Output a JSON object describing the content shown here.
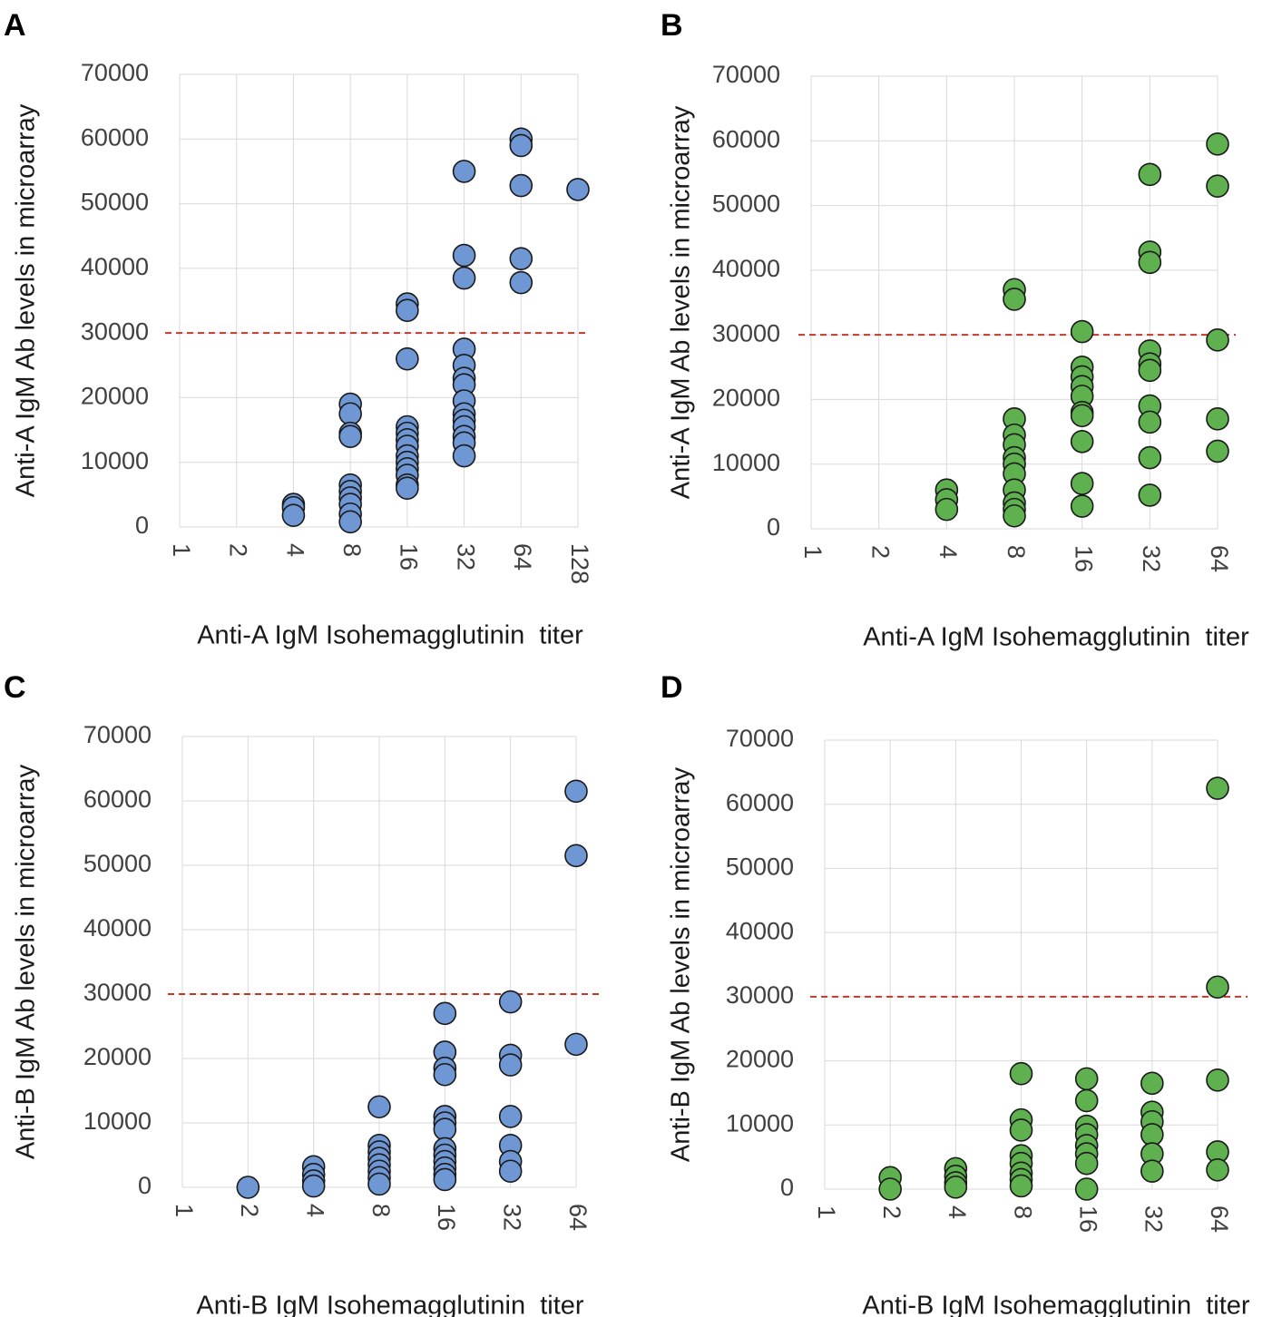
{
  "chart_data": [
    {
      "panel": "A",
      "type": "scatter",
      "xlabel": "Anti-A IgM Isohemagglutinin  titer",
      "ylabel": "Anti-A IgM Ab levels in microarray",
      "x_categories": [
        "1",
        "2",
        "4",
        "8",
        "16",
        "32",
        "64",
        "128"
      ],
      "yticks": [
        "0",
        "10000",
        "20000",
        "30000",
        "40000",
        "50000",
        "60000",
        "70000"
      ],
      "ylim": [
        0,
        70000
      ],
      "threshold": 30000,
      "color": "#6f97d4",
      "points": [
        [
          "4",
          3500
        ],
        [
          "4",
          3000
        ],
        [
          "4",
          1800
        ],
        [
          "8",
          19000
        ],
        [
          "8",
          17500
        ],
        [
          "8",
          14500
        ],
        [
          "8",
          14000
        ],
        [
          "8",
          6500
        ],
        [
          "8",
          5500
        ],
        [
          "8",
          4500
        ],
        [
          "8",
          3500
        ],
        [
          "8",
          2000
        ],
        [
          "8",
          800
        ],
        [
          "16",
          34500
        ],
        [
          "16",
          33500
        ],
        [
          "16",
          26000
        ],
        [
          "16",
          15500
        ],
        [
          "16",
          14500
        ],
        [
          "16",
          13500
        ],
        [
          "16",
          12500
        ],
        [
          "16",
          11000
        ],
        [
          "16",
          10000
        ],
        [
          "16",
          9000
        ],
        [
          "16",
          8000
        ],
        [
          "16",
          6500
        ],
        [
          "16",
          6000
        ],
        [
          "32",
          55000
        ],
        [
          "32",
          42000
        ],
        [
          "32",
          38500
        ],
        [
          "32",
          27500
        ],
        [
          "32",
          25000
        ],
        [
          "32",
          23000
        ],
        [
          "32",
          22000
        ],
        [
          "32",
          19500
        ],
        [
          "32",
          17500
        ],
        [
          "32",
          16500
        ],
        [
          "32",
          15500
        ],
        [
          "32",
          14000
        ],
        [
          "32",
          13000
        ],
        [
          "32",
          11000
        ],
        [
          "64",
          60000
        ],
        [
          "64",
          59000
        ],
        [
          "64",
          52800
        ],
        [
          "64",
          41500
        ],
        [
          "64",
          37800
        ],
        [
          "128",
          52200
        ]
      ]
    },
    {
      "panel": "B",
      "type": "scatter",
      "xlabel": "Anti-A IgM Isohemagglutinin  titer",
      "ylabel": "Anti-A IgM Ab levels in microarray",
      "x_categories": [
        "1",
        "2",
        "4",
        "8",
        "16",
        "32",
        "64"
      ],
      "yticks": [
        "0",
        "10000",
        "20000",
        "30000",
        "40000",
        "50000",
        "60000",
        "70000"
      ],
      "ylim": [
        0,
        70000
      ],
      "threshold": 30000,
      "color": "#5fb14f",
      "points": [
        [
          "4",
          6000
        ],
        [
          "4",
          4500
        ],
        [
          "4",
          3000
        ],
        [
          "8",
          37000
        ],
        [
          "8",
          35500
        ],
        [
          "8",
          17000
        ],
        [
          "8",
          14500
        ],
        [
          "8",
          13000
        ],
        [
          "8",
          11000
        ],
        [
          "8",
          10000
        ],
        [
          "8",
          8500
        ],
        [
          "8",
          6000
        ],
        [
          "8",
          4000
        ],
        [
          "8",
          3000
        ],
        [
          "8",
          2000
        ],
        [
          "16",
          30500
        ],
        [
          "16",
          25000
        ],
        [
          "16",
          23500
        ],
        [
          "16",
          22000
        ],
        [
          "16",
          20500
        ],
        [
          "16",
          18000
        ],
        [
          "16",
          17500
        ],
        [
          "16",
          13500
        ],
        [
          "16",
          7000
        ],
        [
          "16",
          3500
        ],
        [
          "32",
          54800
        ],
        [
          "32",
          42800
        ],
        [
          "32",
          41200
        ],
        [
          "32",
          27500
        ],
        [
          "32",
          25500
        ],
        [
          "32",
          24500
        ],
        [
          "32",
          19000
        ],
        [
          "32",
          16500
        ],
        [
          "32",
          11000
        ],
        [
          "32",
          5200
        ],
        [
          "64",
          59500
        ],
        [
          "64",
          53000
        ],
        [
          "64",
          29200
        ],
        [
          "64",
          17000
        ],
        [
          "64",
          12000
        ]
      ]
    },
    {
      "panel": "C",
      "type": "scatter",
      "xlabel": "Anti-B IgM Isohemagglutinin  titer",
      "ylabel": "Anti-B IgM Ab levels in microarray",
      "x_categories": [
        "1",
        "2",
        "4",
        "8",
        "16",
        "32",
        "64"
      ],
      "yticks": [
        "0",
        "10000",
        "20000",
        "30000",
        "40000",
        "50000",
        "60000",
        "70000"
      ],
      "ylim": [
        0,
        70000
      ],
      "threshold": 30000,
      "color": "#6f97d4",
      "points": [
        [
          "2",
          0
        ],
        [
          "4",
          3200
        ],
        [
          "4",
          2000
        ],
        [
          "4",
          1000
        ],
        [
          "4",
          200
        ],
        [
          "8",
          12500
        ],
        [
          "8",
          6500
        ],
        [
          "8",
          5500
        ],
        [
          "8",
          4500
        ],
        [
          "8",
          3500
        ],
        [
          "8",
          2500
        ],
        [
          "8",
          1500
        ],
        [
          "8",
          500
        ],
        [
          "16",
          27000
        ],
        [
          "16",
          21000
        ],
        [
          "16",
          18500
        ],
        [
          "16",
          17500
        ],
        [
          "16",
          11000
        ],
        [
          "16",
          10000
        ],
        [
          "16",
          9000
        ],
        [
          "16",
          6000
        ],
        [
          "16",
          5000
        ],
        [
          "16",
          4000
        ],
        [
          "16",
          3000
        ],
        [
          "16",
          2000
        ],
        [
          "16",
          1200
        ],
        [
          "32",
          28800
        ],
        [
          "32",
          20500
        ],
        [
          "32",
          19000
        ],
        [
          "32",
          11000
        ],
        [
          "32",
          6500
        ],
        [
          "32",
          4000
        ],
        [
          "32",
          2500
        ],
        [
          "64",
          61500
        ],
        [
          "64",
          51500
        ],
        [
          "64",
          22200
        ]
      ]
    },
    {
      "panel": "D",
      "type": "scatter",
      "xlabel": "Anti-B IgM Isohemagglutinin  titer",
      "ylabel": "Anti-B IgM Ab levels in microarray",
      "x_categories": [
        "1",
        "2",
        "4",
        "8",
        "16",
        "32",
        "64"
      ],
      "yticks": [
        "0",
        "10000",
        "20000",
        "30000",
        "40000",
        "50000",
        "60000",
        "70000"
      ],
      "ylim": [
        0,
        70000
      ],
      "threshold": 30000,
      "color": "#5fb14f",
      "points": [
        [
          "2",
          1800
        ],
        [
          "2",
          0
        ],
        [
          "4",
          3200
        ],
        [
          "4",
          2000
        ],
        [
          "4",
          1000
        ],
        [
          "4",
          300
        ],
        [
          "8",
          18000
        ],
        [
          "8",
          10800
        ],
        [
          "8",
          9200
        ],
        [
          "8",
          5200
        ],
        [
          "8",
          4000
        ],
        [
          "8",
          2500
        ],
        [
          "8",
          1500
        ],
        [
          "8",
          500
        ],
        [
          "16",
          17200
        ],
        [
          "16",
          13800
        ],
        [
          "16",
          9800
        ],
        [
          "16",
          8500
        ],
        [
          "16",
          6800
        ],
        [
          "16",
          5500
        ],
        [
          "16",
          4000
        ],
        [
          "16",
          0
        ],
        [
          "32",
          16500
        ],
        [
          "32",
          12000
        ],
        [
          "32",
          10500
        ],
        [
          "32",
          8500
        ],
        [
          "32",
          5500
        ],
        [
          "32",
          2800
        ],
        [
          "64",
          62500
        ],
        [
          "64",
          31500
        ],
        [
          "64",
          17000
        ],
        [
          "64",
          5800
        ],
        [
          "64",
          3000
        ]
      ]
    }
  ]
}
